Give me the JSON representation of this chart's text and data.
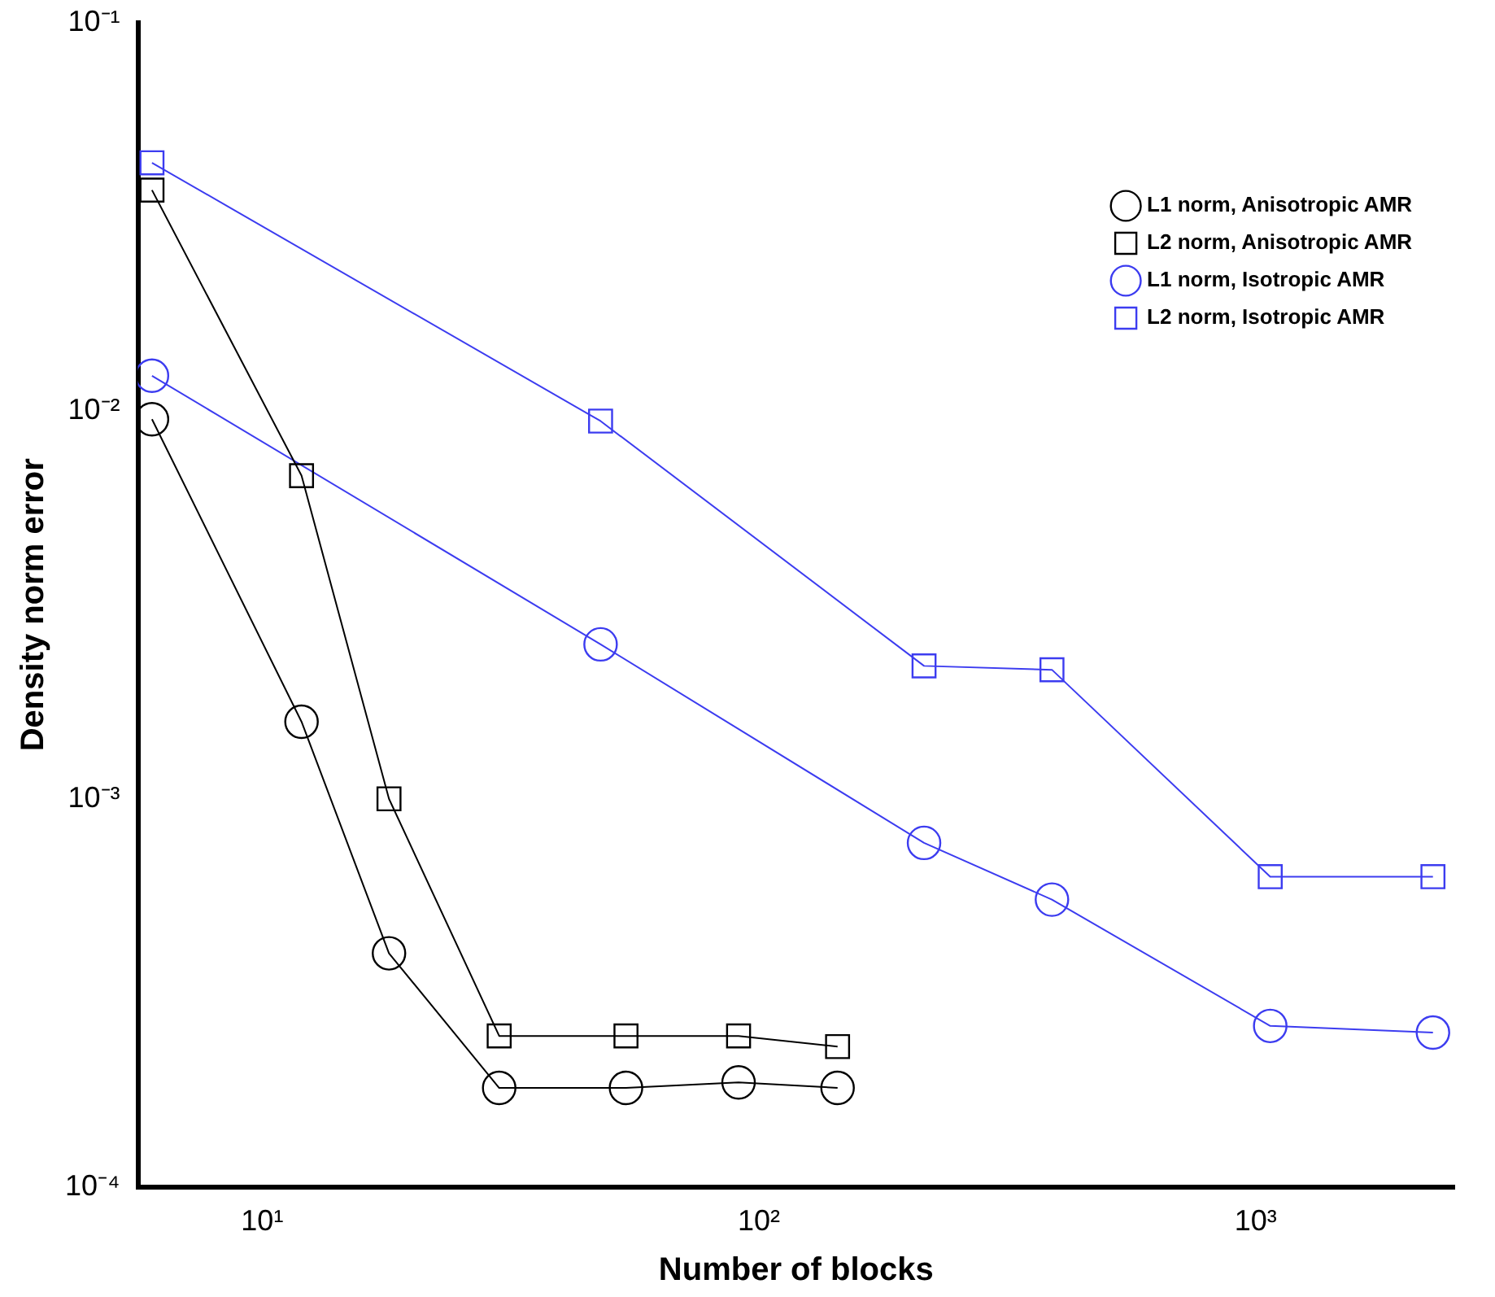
{
  "chart_data": {
    "type": "line",
    "xlabel": "Number of blocks",
    "ylabel": "Density norm error",
    "log": "xy",
    "grid": false,
    "legend": "top right",
    "line_style": "solid",
    "xlim": [
      5.62,
      2512
    ],
    "ylim": [
      0.0001,
      0.1
    ],
    "xticks": [
      {
        "value": 10,
        "label": "10¹"
      },
      {
        "value": 100,
        "label": "10²"
      },
      {
        "value": 1000,
        "label": "10³"
      }
    ],
    "yticks": [
      {
        "value": 0.0001,
        "label": "10⁻⁴"
      },
      {
        "value": 0.001,
        "label": "10⁻³"
      },
      {
        "value": 0.01,
        "label": "10⁻²"
      },
      {
        "value": 0.1,
        "label": "10⁻¹"
      }
    ],
    "series": [
      {
        "name": "L1 norm, Anisotropic AMR",
        "color": "#000000",
        "marker": "circle",
        "x": [
          6,
          12,
          18,
          30,
          54,
          91,
          144
        ],
        "values": [
          0.0095,
          0.00158,
          0.0004,
          0.00018,
          0.00018,
          0.000186,
          0.00018
        ]
      },
      {
        "name": "L2 norm, Anisotropic AMR",
        "color": "#000000",
        "marker": "square",
        "x": [
          6,
          12,
          18,
          30,
          54,
          91,
          144
        ],
        "values": [
          0.037,
          0.0068,
          0.001,
          0.000245,
          0.000245,
          0.000245,
          0.00023
        ]
      },
      {
        "name": "L1 norm, Isotropic AMR",
        "color": "#3c3cf0",
        "marker": "circle",
        "x": [
          6,
          48,
          215,
          389,
          1070,
          2275
        ],
        "values": [
          0.0123,
          0.0025,
          0.00077,
          0.00055,
          0.00026,
          0.00025
        ]
      },
      {
        "name": "L2 norm, Isotropic AMR",
        "color": "#3c3cf0",
        "marker": "square",
        "x": [
          6,
          48,
          215,
          389,
          1070,
          2275
        ],
        "values": [
          0.0435,
          0.0094,
          0.0022,
          0.00215,
          0.00063,
          0.00063
        ]
      }
    ]
  }
}
